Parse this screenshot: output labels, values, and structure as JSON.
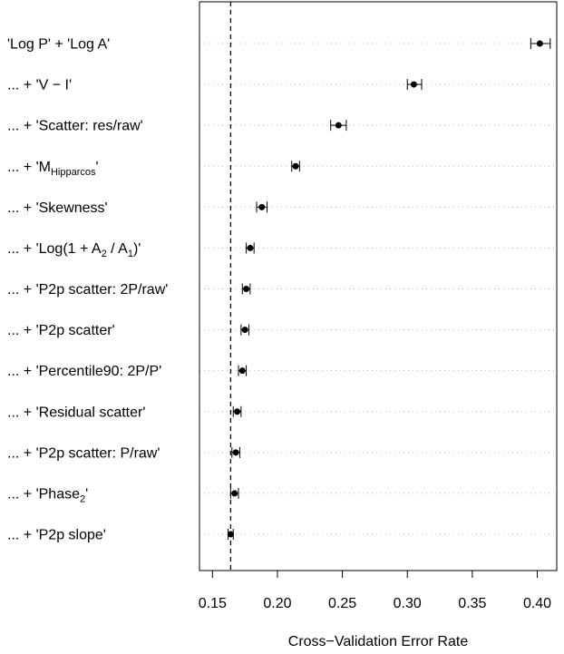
{
  "chart_data": {
    "type": "dot-errorbar",
    "title": "",
    "xlabel": "Cross−Validation Error Rate",
    "ylabel": "",
    "xlim": [
      0.14,
      0.415
    ],
    "xticks": [
      0.15,
      0.2,
      0.25,
      0.3,
      0.35,
      0.4
    ],
    "xtick_labels": [
      "0.15",
      "0.20",
      "0.25",
      "0.30",
      "0.35",
      "0.40"
    ],
    "grid": "horizontal dotted",
    "reference_line": {
      "value": 0.164,
      "style": "dashed"
    },
    "rows": [
      {
        "prefix": "",
        "main": "'Log P' + 'Log A'",
        "sub": "",
        "suffix": "",
        "value": 0.402,
        "lower": 0.395,
        "upper": 0.41
      },
      {
        "prefix": "... + ",
        "main": "'V − I'",
        "sub": "",
        "suffix": "",
        "value": 0.305,
        "lower": 0.3,
        "upper": 0.311
      },
      {
        "prefix": "... + ",
        "main": "'Scatter: res/raw'",
        "sub": "",
        "suffix": "",
        "value": 0.247,
        "lower": 0.241,
        "upper": 0.253
      },
      {
        "prefix": "... + ",
        "main": "'M",
        "sub": "Hipparcos",
        "suffix": "'",
        "value": 0.214,
        "lower": 0.211,
        "upper": 0.217
      },
      {
        "prefix": "... + ",
        "main": "'Skewness'",
        "sub": "",
        "suffix": "",
        "value": 0.188,
        "lower": 0.184,
        "upper": 0.192
      },
      {
        "prefix": "... + ",
        "main": "'Log(1 + A",
        "sub": "2",
        "suffix": " / A",
        "sub2": "1",
        "suffix2": ")'",
        "value": 0.179,
        "lower": 0.176,
        "upper": 0.182
      },
      {
        "prefix": "... + ",
        "main": "'P2p scatter: 2P/raw'",
        "sub": "",
        "suffix": "",
        "value": 0.176,
        "lower": 0.173,
        "upper": 0.179
      },
      {
        "prefix": "... + ",
        "main": "'P2p scatter'",
        "sub": "",
        "suffix": "",
        "value": 0.175,
        "lower": 0.172,
        "upper": 0.178
      },
      {
        "prefix": "... + ",
        "main": "'Percentile90: 2P/P'",
        "sub": "",
        "suffix": "",
        "value": 0.173,
        "lower": 0.17,
        "upper": 0.176
      },
      {
        "prefix": "... + ",
        "main": "'Residual scatter'",
        "sub": "",
        "suffix": "",
        "value": 0.169,
        "lower": 0.166,
        "upper": 0.172
      },
      {
        "prefix": "... + ",
        "main": "'P2p scatter: P/raw'",
        "sub": "",
        "suffix": "",
        "value": 0.168,
        "lower": 0.165,
        "upper": 0.171
      },
      {
        "prefix": "... + ",
        "main": "'Phase",
        "sub": "2",
        "suffix": "'",
        "value": 0.167,
        "lower": 0.164,
        "upper": 0.17
      },
      {
        "prefix": "... + ",
        "main": "'P2p slope'",
        "sub": "",
        "suffix": "",
        "value": 0.164,
        "lower": 0.162,
        "upper": 0.166
      }
    ]
  }
}
